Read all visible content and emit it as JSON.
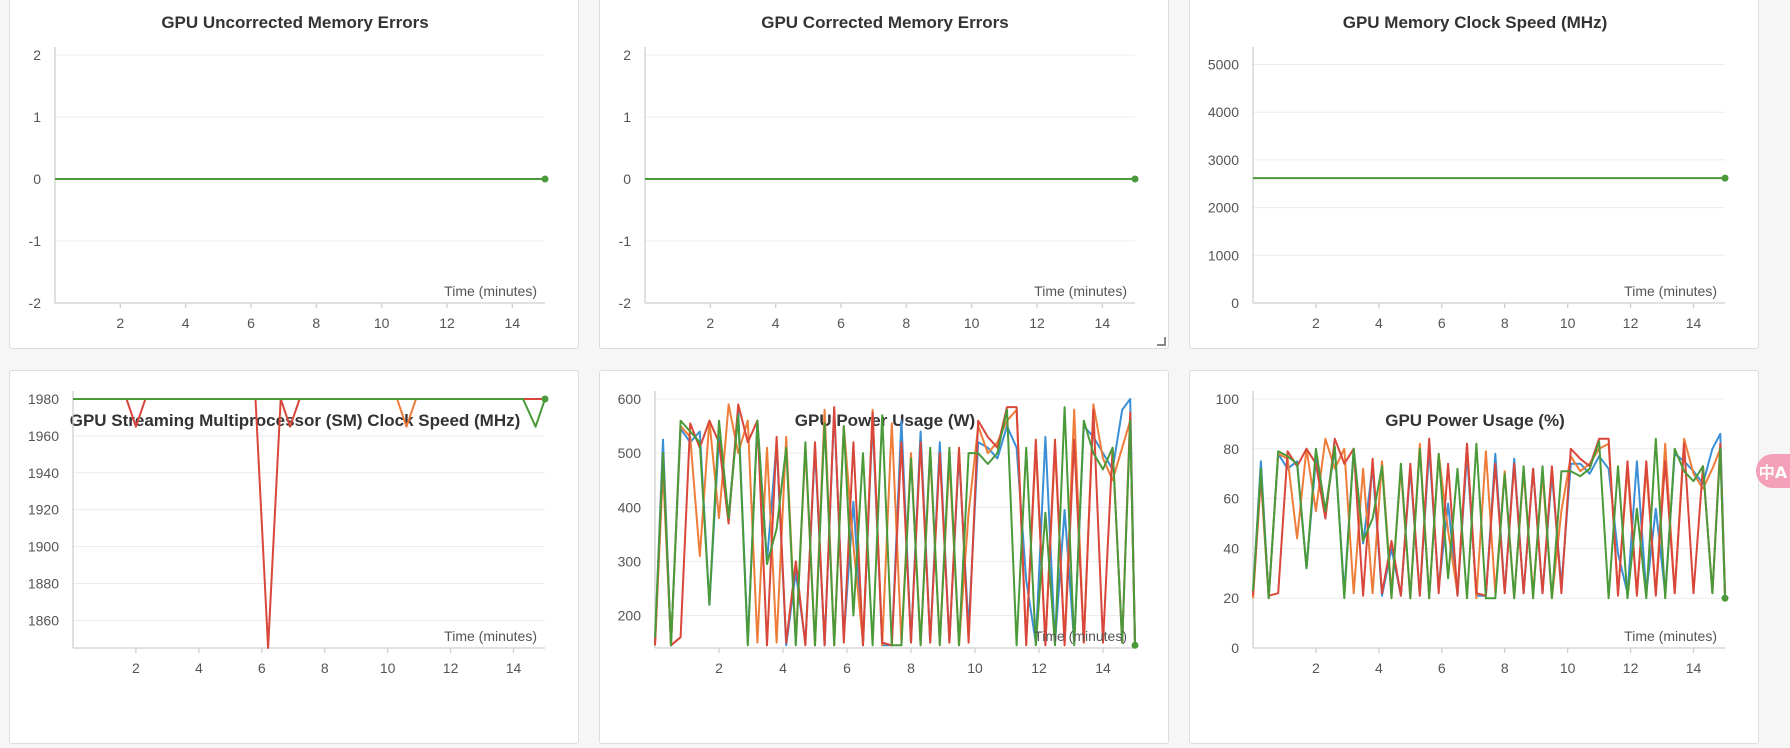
{
  "translate_button": {
    "label": "中A"
  },
  "colors": {
    "blue": "#3a8fd6",
    "orange": "#ee7d3a",
    "red": "#d9463a",
    "green": "#4a9a3a"
  },
  "chart_data": [
    {
      "type": "line",
      "title": "GPU Uncorrected Memory Errors",
      "xlabel": "Time (minutes)",
      "xlim": [
        0,
        15
      ],
      "ylim": [
        -2,
        2
      ],
      "xticks": [
        2,
        4,
        6,
        8,
        10,
        12,
        14
      ],
      "yticks": [
        -2,
        -1,
        0,
        1,
        2
      ],
      "series": [
        {
          "color": "#4a9a3a",
          "x": [
            0,
            15
          ],
          "values": [
            0,
            0
          ]
        }
      ],
      "end_marker": {
        "x": 15,
        "y": 0
      }
    },
    {
      "type": "line",
      "title": "GPU Corrected Memory Errors",
      "xlabel": "Time (minutes)",
      "xlim": [
        0,
        15
      ],
      "ylim": [
        -2,
        2
      ],
      "xticks": [
        2,
        4,
        6,
        8,
        10,
        12,
        14
      ],
      "yticks": [
        -2,
        -1,
        0,
        1,
        2
      ],
      "series": [
        {
          "color": "#4a9a3a",
          "x": [
            0,
            15
          ],
          "values": [
            0,
            0
          ]
        }
      ],
      "end_marker": {
        "x": 15,
        "y": 0
      }
    },
    {
      "type": "line",
      "title": "GPU Memory Clock Speed (MHz)",
      "xlabel": "Time (minutes)",
      "xlim": [
        0,
        15
      ],
      "ylim": [
        0,
        5200
      ],
      "xticks": [
        2,
        4,
        6,
        8,
        10,
        12,
        14
      ],
      "yticks": [
        0,
        1000,
        2000,
        3000,
        4000,
        5000
      ],
      "series": [
        {
          "color": "#4a9a3a",
          "x": [
            0,
            15
          ],
          "values": [
            2619,
            2619
          ]
        }
      ],
      "end_marker": {
        "x": 15,
        "y": 2619
      }
    },
    {
      "type": "line",
      "title": "GPU Streaming Multiprocessor (SM) Clock Speed (MHz)",
      "xlabel": "Time (minutes)",
      "xlim": [
        0,
        15
      ],
      "ylim": [
        1845,
        1980
      ],
      "xticks": [
        2,
        4,
        6,
        8,
        10,
        12,
        14
      ],
      "yticks": [
        1860,
        1880,
        1900,
        1920,
        1940,
        1960,
        1980
      ],
      "series": [
        {
          "color": "#3a8fd6",
          "x": [
            0,
            15
          ],
          "values": [
            1980,
            1980
          ]
        },
        {
          "color": "#ee7d3a",
          "x": [
            0,
            10.3,
            10.6,
            10.9,
            15
          ],
          "values": [
            1980,
            1980,
            1965,
            1980,
            1980
          ]
        },
        {
          "color": "#d9463a",
          "x": [
            0,
            1.7,
            2.0,
            2.3,
            5.8,
            6.2,
            6.6,
            6.9,
            7.2,
            15
          ],
          "values": [
            1980,
            1980,
            1965,
            1980,
            1980,
            1845,
            1980,
            1965,
            1980,
            1980
          ]
        },
        {
          "color": "#4a9a3a",
          "x": [
            0,
            14.3,
            14.7,
            15
          ],
          "values": [
            1980,
            1980,
            1965,
            1980
          ]
        }
      ],
      "end_marker": {
        "x": 15,
        "y": 1980
      }
    },
    {
      "type": "line",
      "title": "GPU Power Usage (W)",
      "xlabel": "Time (minutes)",
      "xlim": [
        0,
        15
      ],
      "ylim": [
        140,
        600
      ],
      "xticks": [
        2,
        4,
        6,
        8,
        10,
        12,
        14
      ],
      "yticks": [
        200,
        300,
        400,
        500,
        600
      ],
      "series": [
        {
          "color": "#3a8fd6",
          "x": [
            0,
            0.25,
            0.5,
            0.8,
            1.1,
            1.4,
            1.7,
            2.0,
            2.3,
            2.6,
            2.9,
            3.2,
            3.5,
            3.8,
            4.1,
            4.4,
            4.7,
            5.0,
            5.3,
            5.6,
            5.9,
            6.2,
            6.5,
            6.8,
            7.1,
            7.4,
            7.7,
            8.0,
            8.3,
            8.6,
            8.9,
            9.2,
            9.5,
            9.8,
            10.1,
            10.4,
            10.7,
            11.0,
            11.3,
            11.6,
            11.9,
            12.2,
            12.5,
            12.8,
            13.1,
            13.4,
            13.7,
            14.0,
            14.3,
            14.6,
            14.85,
            15
          ],
          "values": [
            150,
            525,
            145,
            545,
            520,
            540,
            220,
            530,
            380,
            580,
            150,
            560,
            300,
            520,
            145,
            280,
            150,
            510,
            145,
            580,
            160,
            410,
            145,
            560,
            145,
            145,
            560,
            150,
            540,
            150,
            520,
            150,
            500,
            175,
            520,
            510,
            490,
            550,
            510,
            265,
            150,
            530,
            150,
            395,
            150,
            550,
            530,
            500,
            470,
            580,
            600,
            150
          ]
        },
        {
          "color": "#ee7d3a",
          "x": [
            0,
            0.25,
            0.5,
            0.8,
            1.1,
            1.4,
            1.7,
            2.0,
            2.3,
            2.6,
            2.9,
            3.2,
            3.5,
            3.8,
            4.1,
            4.4,
            4.7,
            5.0,
            5.3,
            5.6,
            5.9,
            6.2,
            6.5,
            6.8,
            7.1,
            7.4,
            7.7,
            8.0,
            8.3,
            8.6,
            8.9,
            9.2,
            9.5,
            9.8,
            10.1,
            10.4,
            10.7,
            11.0,
            11.3,
            11.6,
            11.9,
            12.2,
            12.5,
            12.8,
            13.1,
            13.4,
            13.7,
            14.0,
            14.3,
            14.6,
            14.85,
            15
          ],
          "values": [
            145,
            470,
            145,
            550,
            530,
            310,
            560,
            380,
            590,
            500,
            560,
            150,
            510,
            150,
            530,
            150,
            510,
            145,
            580,
            145,
            550,
            330,
            150,
            580,
            145,
            555,
            150,
            500,
            145,
            500,
            150,
            490,
            145,
            390,
            550,
            500,
            520,
            560,
            580,
            150,
            510,
            150,
            510,
            150,
            580,
            150,
            590,
            490,
            450,
            510,
            560,
            150
          ]
        },
        {
          "color": "#d9463a",
          "x": [
            0,
            0.25,
            0.5,
            0.8,
            1.1,
            1.4,
            1.7,
            2.0,
            2.3,
            2.6,
            2.9,
            3.2,
            3.5,
            3.8,
            4.1,
            4.4,
            4.7,
            5.0,
            5.3,
            5.6,
            5.9,
            6.2,
            6.5,
            6.8,
            7.1,
            7.4,
            7.7,
            8.0,
            8.3,
            8.6,
            8.9,
            9.2,
            9.5,
            9.8,
            10.1,
            10.4,
            10.7,
            11.0,
            11.3,
            11.6,
            11.9,
            12.2,
            12.5,
            12.8,
            13.1,
            13.4,
            13.7,
            14.0,
            14.3,
            14.6,
            14.85,
            15
          ],
          "values": [
            145,
            500,
            145,
            160,
            555,
            510,
            560,
            520,
            370,
            590,
            520,
            560,
            145,
            530,
            150,
            300,
            145,
            520,
            145,
            585,
            150,
            520,
            145,
            575,
            150,
            145,
            520,
            150,
            520,
            150,
            500,
            150,
            510,
            150,
            560,
            530,
            510,
            585,
            585,
            145,
            525,
            145,
            525,
            145,
            525,
            150,
            580,
            150,
            510,
            150,
            575,
            145
          ]
        },
        {
          "color": "#4a9a3a",
          "x": [
            0,
            0.25,
            0.5,
            0.8,
            1.1,
            1.4,
            1.7,
            2.0,
            2.3,
            2.6,
            2.9,
            3.2,
            3.5,
            3.8,
            4.1,
            4.4,
            4.7,
            5.0,
            5.3,
            5.6,
            5.9,
            6.2,
            6.5,
            6.8,
            7.1,
            7.4,
            7.7,
            8.0,
            8.3,
            8.6,
            8.9,
            9.2,
            9.5,
            9.8,
            10.1,
            10.4,
            10.7,
            11.0,
            11.3,
            11.6,
            11.9,
            12.2,
            12.5,
            12.8,
            13.1,
            13.4,
            13.7,
            14.0,
            14.3,
            14.6,
            14.85,
            15
          ],
          "values": [
            160,
            500,
            145,
            560,
            540,
            520,
            220,
            560,
            380,
            570,
            145,
            560,
            295,
            360,
            510,
            145,
            520,
            145,
            555,
            145,
            550,
            200,
            500,
            145,
            570,
            145,
            145,
            490,
            145,
            510,
            145,
            510,
            145,
            500,
            500,
            480,
            500,
            580,
            145,
            510,
            145,
            390,
            145,
            585,
            145,
            560,
            500,
            470,
            510,
            150,
            560,
            145
          ]
        }
      ],
      "end_marker": {
        "x": 15,
        "y": 145
      }
    },
    {
      "type": "line",
      "title": "GPU Power Usage (%)",
      "xlabel": "Time (minutes)",
      "xlim": [
        0,
        15
      ],
      "ylim": [
        0,
        100
      ],
      "xticks": [
        2,
        4,
        6,
        8,
        10,
        12,
        14
      ],
      "yticks": [
        0,
        20,
        40,
        60,
        80,
        100
      ],
      "series": [
        {
          "color": "#3a8fd6",
          "x": [
            0,
            0.25,
            0.5,
            0.8,
            1.1,
            1.4,
            1.7,
            2.0,
            2.3,
            2.6,
            2.9,
            3.2,
            3.5,
            3.8,
            4.1,
            4.4,
            4.7,
            5.0,
            5.3,
            5.6,
            5.9,
            6.2,
            6.5,
            6.8,
            7.1,
            7.4,
            7.7,
            8.0,
            8.3,
            8.6,
            8.9,
            9.2,
            9.5,
            9.8,
            10.1,
            10.4,
            10.7,
            11.0,
            11.3,
            11.6,
            11.9,
            12.2,
            12.5,
            12.8,
            13.1,
            13.4,
            13.7,
            14.0,
            14.3,
            14.6,
            14.85,
            15
          ],
          "values": [
            22,
            75,
            20,
            78,
            72,
            75,
            32,
            76,
            55,
            80,
            22,
            80,
            42,
            73,
            21,
            40,
            21,
            72,
            21,
            80,
            24,
            58,
            21,
            78,
            21,
            21,
            78,
            22,
            76,
            22,
            72,
            22,
            70,
            25,
            74,
            74,
            70,
            77,
            72,
            38,
            22,
            75,
            22,
            56,
            22,
            78,
            75,
            71,
            66,
            80,
            86,
            22
          ]
        },
        {
          "color": "#ee7d3a",
          "x": [
            0,
            0.25,
            0.5,
            0.8,
            1.1,
            1.4,
            1.7,
            2.0,
            2.3,
            2.6,
            2.9,
            3.2,
            3.5,
            3.8,
            4.1,
            4.4,
            4.7,
            5.0,
            5.3,
            5.6,
            5.9,
            6.2,
            6.5,
            6.8,
            7.1,
            7.4,
            7.7,
            8.0,
            8.3,
            8.6,
            8.9,
            9.2,
            9.5,
            9.8,
            10.1,
            10.4,
            10.7,
            11.0,
            11.3,
            11.6,
            11.9,
            12.2,
            12.5,
            12.8,
            13.1,
            13.4,
            13.7,
            14.0,
            14.3,
            14.6,
            14.85,
            15
          ],
          "values": [
            20,
            68,
            20,
            78,
            76,
            44,
            80,
            55,
            84,
            72,
            80,
            22,
            72,
            22,
            75,
            22,
            72,
            20,
            82,
            20,
            78,
            47,
            22,
            82,
            20,
            79,
            22,
            71,
            20,
            71,
            22,
            70,
            20,
            55,
            77,
            71,
            74,
            80,
            82,
            22,
            72,
            22,
            72,
            22,
            82,
            22,
            84,
            70,
            64,
            72,
            80,
            22
          ]
        },
        {
          "color": "#d9463a",
          "x": [
            0,
            0.25,
            0.5,
            0.8,
            1.1,
            1.4,
            1.7,
            2.0,
            2.3,
            2.6,
            2.9,
            3.2,
            3.5,
            3.8,
            4.1,
            4.4,
            4.7,
            5.0,
            5.3,
            5.6,
            5.9,
            6.2,
            6.5,
            6.8,
            7.1,
            7.4,
            7.7,
            8.0,
            8.3,
            8.6,
            8.9,
            9.2,
            9.5,
            9.8,
            10.1,
            10.4,
            10.7,
            11.0,
            11.3,
            11.6,
            11.9,
            12.2,
            12.5,
            12.8,
            13.1,
            13.4,
            13.7,
            14.0,
            14.3,
            14.6,
            14.85,
            15
          ],
          "values": [
            21,
            70,
            21,
            22,
            79,
            73,
            80,
            74,
            52,
            84,
            74,
            80,
            21,
            76,
            22,
            43,
            21,
            74,
            21,
            84,
            22,
            74,
            21,
            82,
            22,
            21,
            74,
            22,
            74,
            22,
            72,
            22,
            73,
            22,
            80,
            76,
            73,
            84,
            84,
            21,
            75,
            21,
            75,
            21,
            75,
            22,
            82,
            22,
            73,
            22,
            82,
            21
          ]
        },
        {
          "color": "#4a9a3a",
          "x": [
            0,
            0.25,
            0.5,
            0.8,
            1.1,
            1.4,
            1.7,
            2.0,
            2.3,
            2.6,
            2.9,
            3.2,
            3.5,
            3.8,
            4.1,
            4.4,
            4.7,
            5.0,
            5.3,
            5.6,
            5.9,
            6.2,
            6.5,
            6.8,
            7.1,
            7.4,
            7.7,
            8.0,
            8.3,
            8.6,
            8.9,
            9.2,
            9.5,
            9.8,
            10.1,
            10.4,
            10.7,
            11.0,
            11.3,
            11.6,
            11.9,
            12.2,
            12.5,
            12.8,
            13.1,
            13.4,
            13.7,
            14.0,
            14.3,
            14.6,
            14.85,
            15
          ],
          "values": [
            23,
            72,
            20,
            79,
            77,
            74,
            32,
            80,
            55,
            81,
            20,
            80,
            43,
            52,
            73,
            20,
            74,
            20,
            80,
            20,
            78,
            28,
            72,
            20,
            82,
            20,
            20,
            70,
            20,
            73,
            20,
            73,
            20,
            71,
            71,
            69,
            72,
            83,
            20,
            73,
            20,
            56,
            20,
            84,
            20,
            80,
            71,
            67,
            73,
            22,
            80,
            20
          ]
        }
      ],
      "end_marker": {
        "x": 15,
        "y": 20
      }
    }
  ]
}
